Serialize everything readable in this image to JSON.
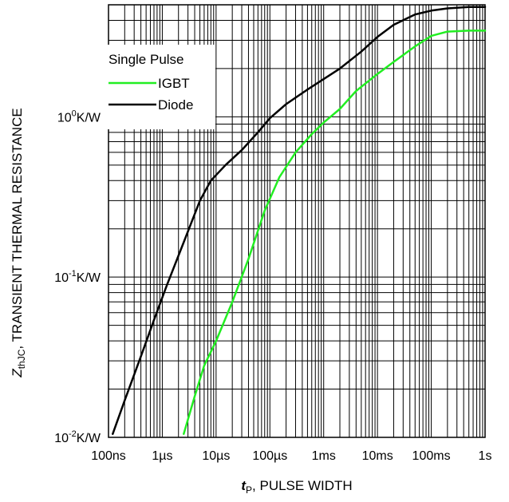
{
  "chart_data": {
    "type": "line",
    "x_scale": "log",
    "y_scale": "log",
    "xlim": [
      1e-07,
      1
    ],
    "ylim": [
      0.01,
      5
    ],
    "grid": true,
    "legend_placement": "top-left",
    "legend_title": "Single Pulse",
    "x_ticks": [
      {
        "value": 1e-07,
        "label": "100ns"
      },
      {
        "value": 1e-06,
        "label": "1µs"
      },
      {
        "value": 1e-05,
        "label": "10µs"
      },
      {
        "value": 0.0001,
        "label": "100µs"
      },
      {
        "value": 0.001,
        "label": "1ms"
      },
      {
        "value": 0.01,
        "label": "10ms"
      },
      {
        "value": 0.1,
        "label": "100ms"
      },
      {
        "value": 1,
        "label": "1s"
      }
    ],
    "y_ticks": [
      {
        "value": 0.01,
        "base": "10",
        "exp": "-2",
        "unit": "K/W"
      },
      {
        "value": 0.1,
        "base": "10",
        "exp": "-1",
        "unit": "K/W"
      },
      {
        "value": 1,
        "base": "10",
        "exp": "0",
        "unit": "K/W"
      }
    ],
    "xlabel": {
      "var": "t",
      "sub": "P",
      "text": ", PULSE WIDTH"
    },
    "ylabel": {
      "var": "Z",
      "sub": "thJC",
      "text": ", TRANSIENT THERMAL RESISTANCE"
    },
    "series": [
      {
        "name": "IGBT",
        "color": "#22ee22",
        "x": [
          2.5e-06,
          4e-06,
          6e-06,
          1e-05,
          2e-05,
          4e-05,
          8e-05,
          0.00015,
          0.0003,
          0.0006,
          0.001,
          0.002,
          0.004,
          0.01,
          0.02,
          0.05,
          0.1,
          0.2,
          0.5,
          1
        ],
        "y": [
          0.0105,
          0.018,
          0.028,
          0.04,
          0.07,
          0.13,
          0.26,
          0.42,
          0.6,
          0.78,
          0.92,
          1.12,
          1.45,
          1.85,
          2.2,
          2.75,
          3.2,
          3.4,
          3.45,
          3.45
        ]
      },
      {
        "name": "Diode",
        "color": "#000000",
        "x": [
          1.2e-07,
          2e-07,
          4e-07,
          7e-07,
          1.2e-06,
          2.5e-06,
          5e-06,
          8e-06,
          1.5e-05,
          3e-05,
          6e-05,
          0.0001,
          0.0002,
          0.0005,
          0.001,
          0.002,
          0.005,
          0.01,
          0.02,
          0.05,
          0.1,
          0.2,
          0.5,
          1
        ],
        "y": [
          0.0105,
          0.017,
          0.032,
          0.054,
          0.088,
          0.165,
          0.3,
          0.4,
          0.5,
          0.62,
          0.8,
          0.98,
          1.2,
          1.48,
          1.72,
          2.0,
          2.55,
          3.15,
          3.75,
          4.35,
          4.6,
          4.75,
          4.85,
          4.85
        ]
      }
    ]
  }
}
